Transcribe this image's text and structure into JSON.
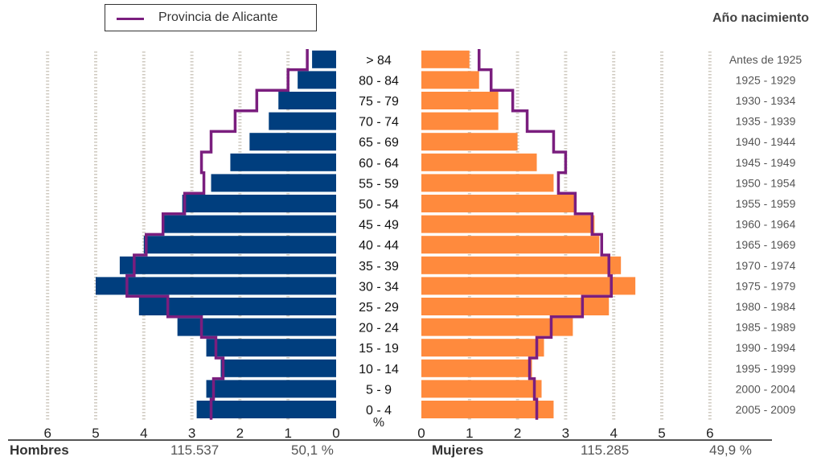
{
  "legend": {
    "label": "Provincia de Alicante",
    "color": "#7a1e7e"
  },
  "birth_header": "Año nacimiento",
  "footer": {
    "men_label": "Hombres",
    "men_total": "115.537",
    "men_pct": "50,1 %",
    "women_label": "Mujeres",
    "women_total": "115.285",
    "women_pct": "49,9 %"
  },
  "colors": {
    "men": "#003e7e",
    "women": "#ff8a3d",
    "province": "#7a1e7e",
    "grid": "#cfcac0"
  },
  "chart_data": {
    "type": "bar",
    "orientation": "population-pyramid",
    "axis_unit": "%",
    "xlim": [
      0,
      6
    ],
    "x_ticks": [
      "6",
      "5",
      "4",
      "3",
      "2",
      "1",
      "0",
      "0",
      "1",
      "2",
      "3",
      "4",
      "5",
      "6"
    ],
    "categories": [
      "> 84",
      "80 - 84",
      "75 - 79",
      "70 - 74",
      "65 - 69",
      "60 - 64",
      "55 - 59",
      "50 - 54",
      "45 - 49",
      "40 - 44",
      "35 - 39",
      "30 - 34",
      "25 - 29",
      "20 - 24",
      "15 - 19",
      "10 - 14",
      "5 - 9",
      "0 - 4"
    ],
    "birth_years": [
      "Antes de 1925",
      "1925 - 1929",
      "1930 - 1934",
      "1935 - 1939",
      "1940 - 1944",
      "1945 - 1949",
      "1950 - 1954",
      "1955 - 1959",
      "1960 - 1964",
      "1965 - 1969",
      "1970 - 1974",
      "1975 - 1979",
      "1980 - 1984",
      "1985 - 1989",
      "1990 - 1994",
      "1995 - 1999",
      "2000 - 2004",
      "2005 - 2009"
    ],
    "series": [
      {
        "name": "Hombres",
        "values": [
          0.5,
          0.8,
          1.2,
          1.4,
          1.8,
          2.2,
          2.6,
          3.2,
          3.6,
          4.0,
          4.5,
          5.0,
          4.1,
          3.3,
          2.7,
          2.4,
          2.7,
          2.9
        ]
      },
      {
        "name": "Mujeres",
        "values": [
          1.0,
          1.2,
          1.6,
          1.6,
          2.0,
          2.4,
          2.75,
          3.2,
          3.6,
          3.7,
          4.15,
          4.45,
          3.9,
          3.15,
          2.55,
          2.3,
          2.5,
          2.75
        ]
      },
      {
        "name": "Provincia de Alicante - Hombres",
        "values": [
          0.6,
          1.0,
          1.65,
          2.1,
          2.6,
          2.8,
          2.75,
          3.15,
          3.6,
          3.95,
          4.2,
          4.35,
          3.5,
          2.8,
          2.5,
          2.35,
          2.55,
          2.6
        ]
      },
      {
        "name": "Provincia de Alicante - Mujeres",
        "values": [
          1.2,
          1.45,
          1.9,
          2.2,
          2.75,
          3.0,
          2.85,
          3.2,
          3.55,
          3.75,
          3.9,
          3.95,
          3.35,
          2.7,
          2.4,
          2.25,
          2.35,
          2.4
        ]
      }
    ]
  }
}
